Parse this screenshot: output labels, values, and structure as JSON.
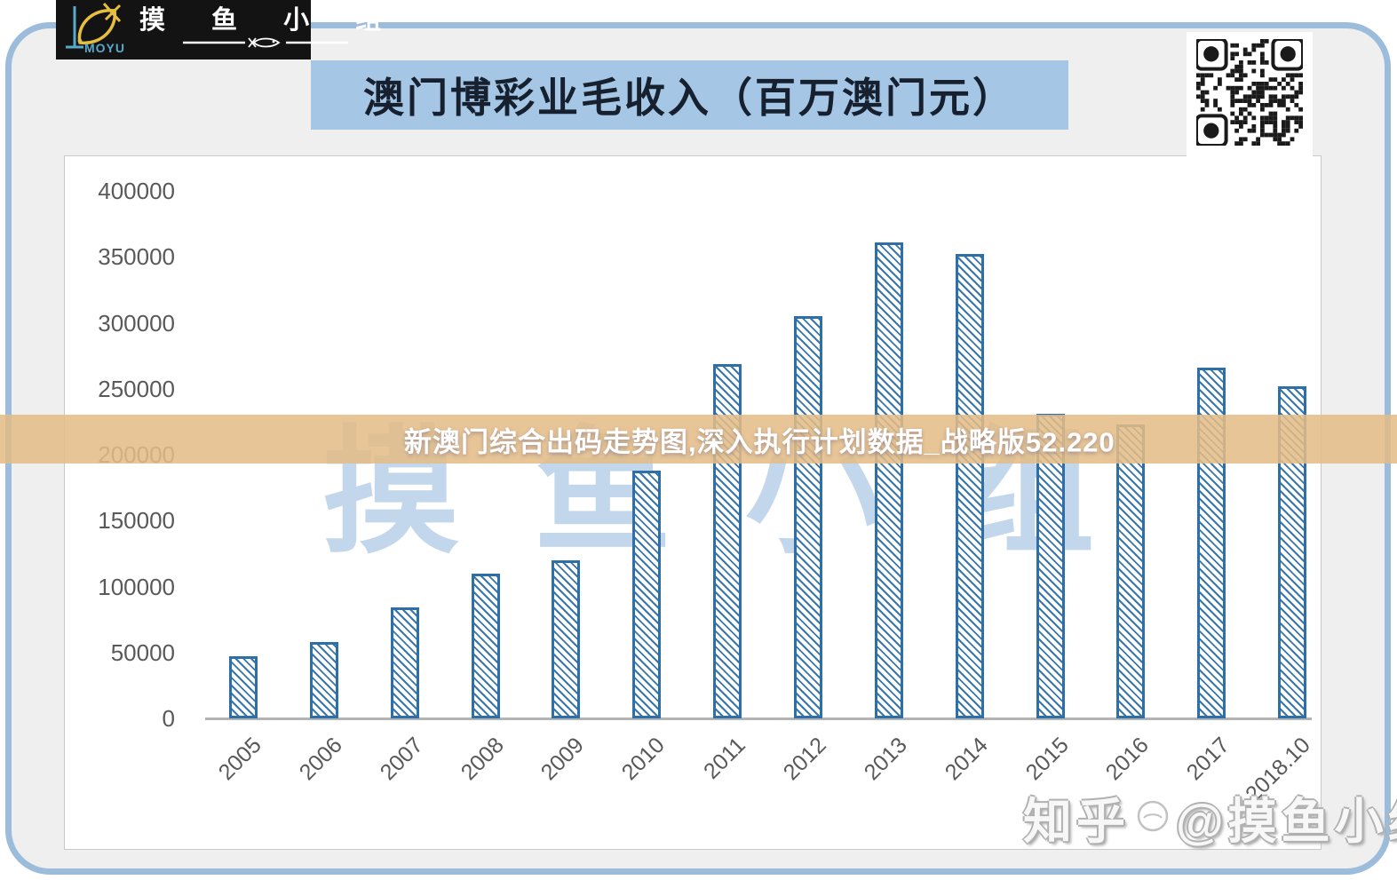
{
  "header": {
    "logo": {
      "brand": "MOYU",
      "title": "摸 鱼 小 组"
    },
    "title": "澳门博彩业毛收入（百万澳门元）"
  },
  "banner": {
    "text": "新澳门综合出码走势图,深入执行计划数据_战略版52.220"
  },
  "watermarks": {
    "background": "摸 鱼 小 组",
    "bottom_prefix": "知乎",
    "bottom_suffix": "@摸鱼小组"
  },
  "chart_data": {
    "type": "bar",
    "title": "澳门博彩业毛收入（百万澳门元）",
    "categories": [
      "2005",
      "2006",
      "2007",
      "2008",
      "2009",
      "2010",
      "2011",
      "2012",
      "2013",
      "2014",
      "2015",
      "2016",
      "2017",
      "2018.10"
    ],
    "values": [
      47000,
      58000,
      84000,
      110000,
      120000,
      188000,
      269000,
      305000,
      361000,
      352000,
      231000,
      223000,
      266000,
      252000
    ],
    "xlabel": "",
    "ylabel": "",
    "ylim": [
      0,
      400000
    ],
    "yticks": [
      0,
      50000,
      100000,
      150000,
      200000,
      250000,
      300000,
      350000,
      400000
    ],
    "grid": false,
    "legend": false,
    "bar_fill": "white with blue diagonal hatch",
    "bar_border_color": "#2e6fa8"
  },
  "colors": {
    "card_border": "#9cbcdb",
    "card_bg": "#efefef",
    "title_bar_bg": "#a6c6e6",
    "title_text": "#16202e",
    "banner_bg": "#e4bc86",
    "banner_text": "#ffffff",
    "bar_border": "#2e6fa8",
    "axis_text": "#595959",
    "watermark_blue": "#c3d7ec",
    "logo_bg": "#131313",
    "logo_accent_yellow": "#e7bf3e",
    "logo_accent_cyan": "#57aacb"
  }
}
